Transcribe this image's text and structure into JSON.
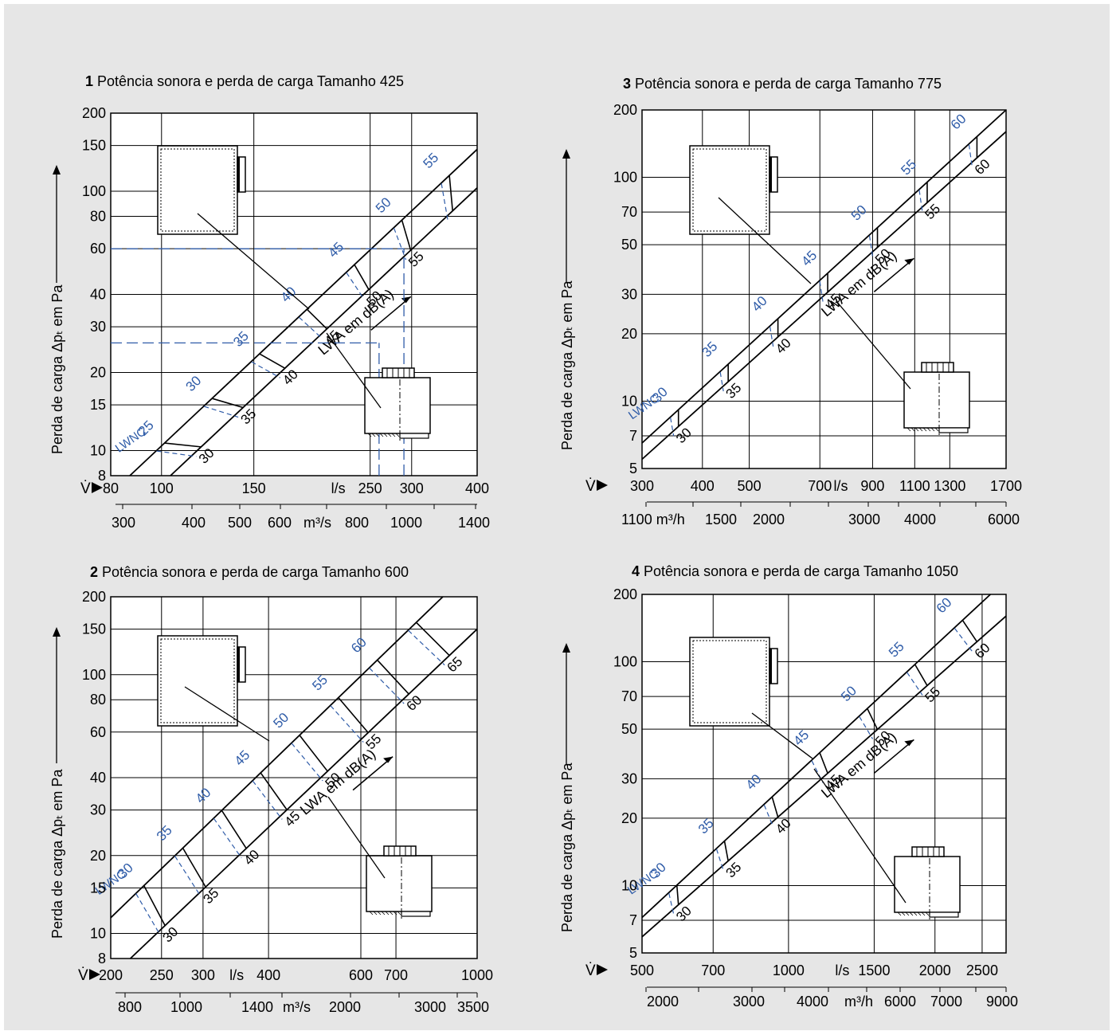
{
  "colors": {
    "panel": "#e6e6e6",
    "plot": "#ffffff",
    "line": "#000000",
    "blue": "#2f5ca8"
  },
  "common": {
    "ylabel": "Perda de carga Δpₜ em Pa",
    "vdot": "V̇",
    "lwa_label": "LWA em dB(A)",
    "lwnc_label": "LWNC"
  },
  "chart_data": [
    {
      "type": "line",
      "id": 1,
      "num": "1",
      "title": "Potência sonora e perda de carga",
      "size": "Tamanho 425",
      "x_scale": "log",
      "y_scale": "log",
      "xlim": [
        80,
        400
      ],
      "ylim": [
        8,
        200
      ],
      "x_ticks": [
        80,
        100,
        150,
        250,
        300,
        400
      ],
      "x_unit": "l/s",
      "x2_labels": [
        "300",
        "400",
        "500",
        "600",
        "800",
        "1000",
        "1400"
      ],
      "x2_unit": "m³/s",
      "y_ticks": [
        8,
        10,
        15,
        20,
        30,
        40,
        60,
        80,
        100,
        150,
        200
      ],
      "series": [
        {
          "name": "LWNC",
          "points": [
            [
              87,
              8
            ],
            [
              400,
              145
            ]
          ]
        },
        {
          "name": "LWA",
          "points": [
            [
              104,
              8
            ],
            [
              400,
              103
            ]
          ]
        }
      ],
      "lwa_levels": [
        "30",
        "35",
        "40",
        "45",
        "50",
        "55"
      ],
      "lwnc_levels": [
        "25",
        "30",
        "35",
        "40",
        "45",
        "50",
        "55"
      ],
      "example": {
        "flow": 290,
        "pressure_lwnc": 60,
        "pressure_lwa": 26
      }
    },
    {
      "type": "line",
      "id": 2,
      "num": "2",
      "title": "Potência sonora e perda de carga",
      "size": "Tamanho 600",
      "x_scale": "log",
      "y_scale": "log",
      "xlim": [
        200,
        1000
      ],
      "ylim": [
        8,
        200
      ],
      "x_ticks": [
        200,
        250,
        300,
        400,
        600,
        700,
        1000
      ],
      "x_unit": "l/s",
      "x2_labels": [
        "800",
        "1000",
        "1400",
        "2000",
        "3000",
        "3500"
      ],
      "x2_unit": "m³/s",
      "y_ticks": [
        8,
        10,
        15,
        20,
        30,
        40,
        60,
        80,
        100,
        150,
        200
      ],
      "series": [
        {
          "name": "LWNC",
          "points": [
            [
              200,
              11.5
            ],
            [
              860,
              200
            ]
          ]
        },
        {
          "name": "LWA",
          "points": [
            [
              218,
              8
            ],
            [
              1000,
              150
            ]
          ]
        }
      ],
      "lwa_levels": [
        "30",
        "35",
        "40",
        "45",
        "50",
        "55",
        "60",
        "65"
      ],
      "lwnc_levels": [
        "30",
        "35",
        "40",
        "45",
        "50",
        "55",
        "60"
      ]
    },
    {
      "type": "line",
      "id": 3,
      "num": "3",
      "title": "Potência sonora e perda de carga",
      "size": "Tamanho 775",
      "x_scale": "log",
      "y_scale": "log",
      "xlim": [
        300,
        1700
      ],
      "ylim": [
        5,
        200
      ],
      "x_ticks": [
        300,
        400,
        500,
        700,
        900,
        1100,
        1300,
        1700
      ],
      "x_unit": "l/s",
      "x2_labels": [
        "1100",
        "1500",
        "2000",
        "3000",
        "4000",
        "6000"
      ],
      "x2_unit": "m³/h",
      "y_ticks": [
        5,
        7,
        10,
        20,
        30,
        50,
        70,
        100,
        200
      ],
      "series": [
        {
          "name": "LWNC",
          "points": [
            [
              300,
              6.5
            ],
            [
              1700,
              200
            ]
          ]
        },
        {
          "name": "LWA",
          "points": [
            [
              300,
              5.5
            ],
            [
              1700,
              160
            ]
          ]
        }
      ],
      "lwa_levels": [
        "30",
        "35",
        "40",
        "45",
        "50",
        "55",
        "60"
      ],
      "lwnc_levels": [
        "30",
        "35",
        "40",
        "45",
        "50",
        "55",
        "60"
      ]
    },
    {
      "type": "line",
      "id": 4,
      "num": "4",
      "title": "Potência sonora e perda de carga",
      "size": "Tamanho 1050",
      "x_scale": "log",
      "y_scale": "log",
      "xlim": [
        500,
        2800
      ],
      "ylim": [
        5,
        200
      ],
      "x_ticks": [
        500,
        700,
        1000,
        1500,
        2000,
        2500
      ],
      "x_unit": "l/s",
      "x2_labels": [
        "2000",
        "3000",
        "4000",
        "6000",
        "7000",
        "9000"
      ],
      "x2_unit": "m³/h",
      "y_ticks": [
        5,
        7,
        10,
        20,
        30,
        50,
        70,
        100,
        200
      ],
      "series": [
        {
          "name": "LWNC",
          "points": [
            [
              500,
              7.2
            ],
            [
              2600,
              200
            ]
          ]
        },
        {
          "name": "LWA",
          "points": [
            [
              500,
              5.9
            ],
            [
              2800,
              160
            ]
          ]
        }
      ],
      "lwa_levels": [
        "30",
        "35",
        "40",
        "45",
        "50",
        "55",
        "60"
      ],
      "lwnc_levels": [
        "30",
        "35",
        "40",
        "45",
        "50",
        "55",
        "60"
      ]
    }
  ]
}
